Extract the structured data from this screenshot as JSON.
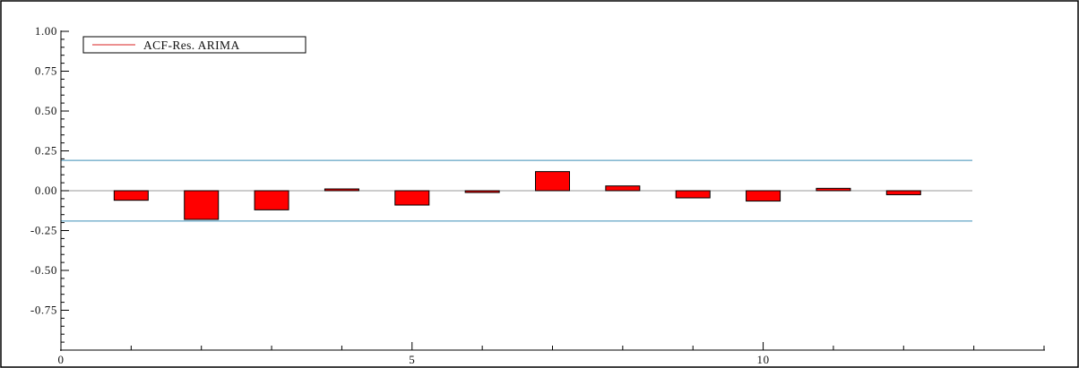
{
  "chart_data": {
    "type": "bar",
    "title": "",
    "xlabel": "",
    "ylabel": "",
    "x": [
      1,
      2,
      3,
      4,
      5,
      6,
      7,
      8,
      9,
      10,
      11,
      12
    ],
    "series": [
      {
        "name": "ACF-Res. ARIMA",
        "values": [
          -0.06,
          -0.18,
          -0.12,
          0.005,
          -0.09,
          -0.01,
          0.12,
          0.03,
          -0.045,
          -0.065,
          0.015,
          -0.025
        ]
      }
    ],
    "confidence_band": [
      -0.19,
      0.19
    ],
    "xlim": [
      0,
      14
    ],
    "ylim": [
      -1.0,
      1.0
    ],
    "x_ticks": [
      0,
      5,
      10
    ],
    "x_tick_labels": [
      "0",
      "5",
      "10"
    ],
    "y_ticks": [
      1.0,
      0.75,
      0.5,
      0.25,
      0.0,
      -0.25,
      -0.5,
      -0.75
    ],
    "y_tick_labels": [
      "1.00",
      "0.75",
      "0.50",
      "0.25",
      "0.00",
      "-0.25",
      "-0.50",
      "-0.75"
    ],
    "grid": false,
    "legend_position": "top-left",
    "colors": {
      "bar_fill": "#ff0000",
      "bar_stroke": "#000000",
      "band_line": "#3d8fb8",
      "zero_line": "#999999",
      "legend_line": "#d92020",
      "axis": "#000000"
    }
  }
}
